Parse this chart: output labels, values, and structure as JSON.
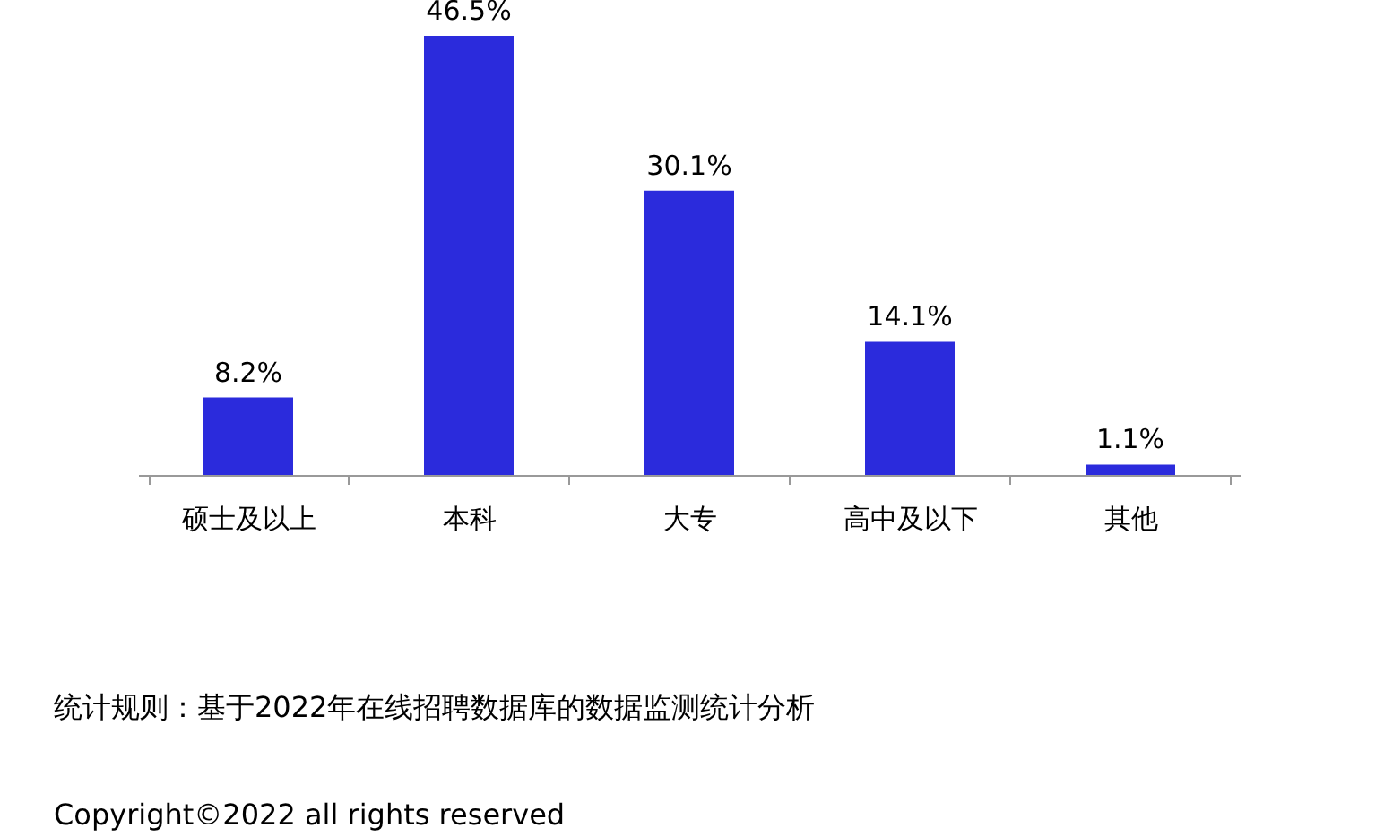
{
  "chart_data": {
    "type": "bar",
    "categories": [
      "硕士及以上",
      "本科",
      "大专",
      "高中及以下",
      "其他"
    ],
    "values": [
      8.2,
      46.5,
      30.1,
      14.1,
      1.1
    ],
    "value_labels": [
      "8.2%",
      "46.5%",
      "30.1%",
      "14.1%",
      "1.1%"
    ],
    "color": "#2b2bdc",
    "grid": false,
    "annotations": [
      "统计规则：基于2022年在线招聘数据库的数据监测统计分析",
      "Copyright©2022 all rights reserved"
    ]
  }
}
